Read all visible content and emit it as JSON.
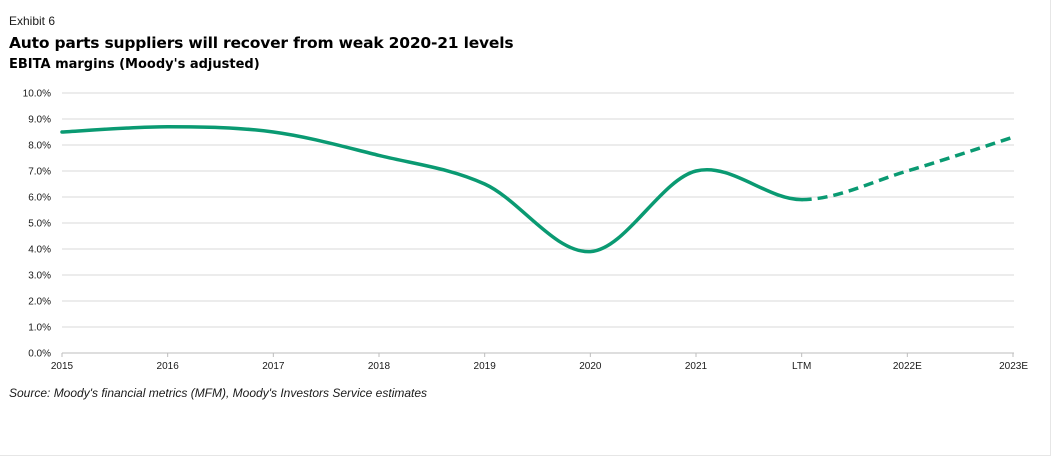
{
  "header": {
    "exhibit": "Exhibit 6",
    "title": "Auto parts suppliers will recover from weak 2020-21 levels",
    "subtitle": "EBITA margins (Moody's adjusted)"
  },
  "footer": {
    "source": "Source: Moody's financial metrics (MFM), Moody's Investors Service estimates"
  },
  "colors": {
    "line": "#0a9a72",
    "grid": "#d9d9d9",
    "axis": "#bdbdbd"
  },
  "chart_data": {
    "type": "line",
    "categories": [
      "2015",
      "2016",
      "2017",
      "2018",
      "2019",
      "2020",
      "2021",
      "LTM",
      "2022E",
      "2023E"
    ],
    "series": [
      {
        "values": [
          8.5,
          8.7,
          8.5,
          7.6,
          6.5,
          3.9,
          7.0,
          5.9,
          7.0,
          8.3
        ],
        "style": "solid through LTM, dashed for estimates (2022E, 2023E)"
      }
    ],
    "title": "Auto parts suppliers will recover from weak 2020-21 levels",
    "subtitle": "EBITA margins (Moody's adjusted)",
    "xlabel": "",
    "ylabel": "",
    "ylim": [
      0,
      10
    ],
    "ytick_step": 1,
    "ytick_labels": [
      "0.0%",
      "1.0%",
      "2.0%",
      "3.0%",
      "4.0%",
      "5.0%",
      "6.0%",
      "7.0%",
      "8.0%",
      "9.0%",
      "10.0%"
    ],
    "grid": true,
    "legend": "none",
    "dashed_from_category": "LTM"
  }
}
